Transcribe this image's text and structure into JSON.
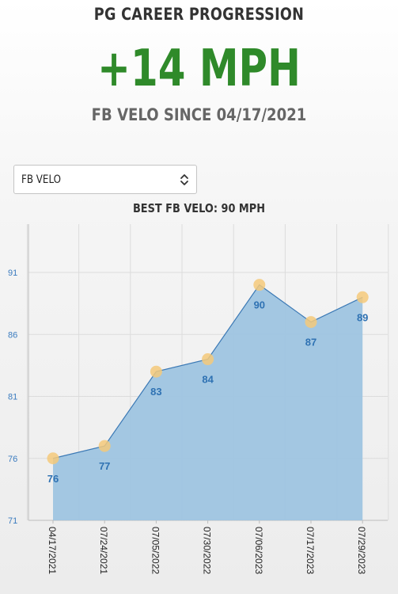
{
  "header": {
    "title": "PG CAREER PROGRESSION",
    "metric": "+14 MPH",
    "subtitle": "FB VELO SINCE 04/17/2021"
  },
  "selector": {
    "selected": "FB VELO",
    "icon": "chevron-up-down-icon"
  },
  "colors": {
    "metric": "#2f8a2a",
    "area_fill": "#9ec4e0",
    "line": "#3b79b5",
    "marker": "#f5c97a",
    "label": "#2f72b3"
  },
  "chart_data": {
    "type": "area",
    "title": "BEST FB VELO: 90 MPH",
    "xlabel": "",
    "ylabel": "",
    "categories": [
      "04/17/2021",
      "07/24/2021",
      "07/05/2022",
      "07/30/2022",
      "07/06/2023",
      "07/17/2023",
      "07/29/2023"
    ],
    "values": [
      76,
      77,
      83,
      84,
      90,
      87,
      89
    ],
    "ylim": [
      71,
      91
    ],
    "yticks": [
      71,
      76,
      81,
      86,
      91
    ],
    "grid": true,
    "data_labels": true
  }
}
